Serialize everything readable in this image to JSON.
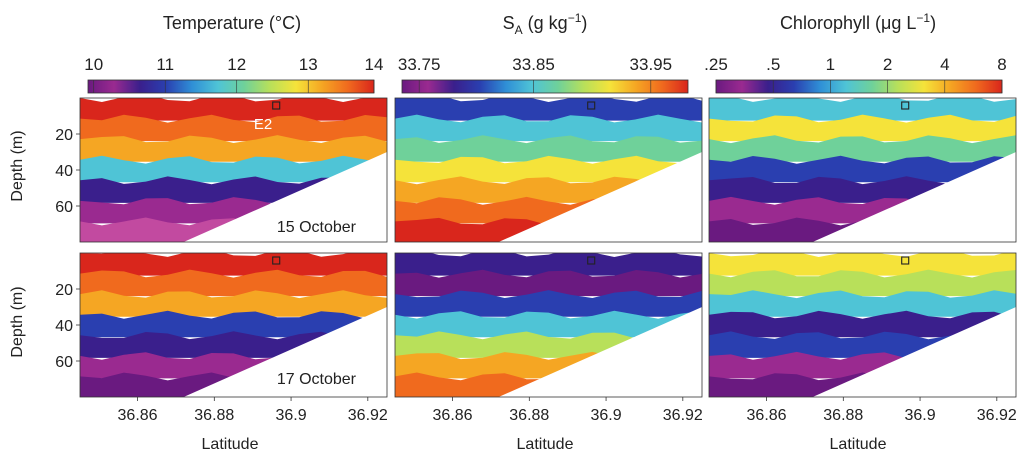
{
  "chart_data": {
    "type": "heatmap",
    "rows": [
      {
        "date_label": "15 October",
        "depth_ticks": [
          20,
          40,
          60
        ]
      },
      {
        "date_label": "17 October",
        "depth_ticks": [
          20,
          40,
          60
        ]
      }
    ],
    "ylabel": "Depth (m)",
    "xlabel": "Latitude",
    "x_ticks": [
      "36.86",
      "36.88",
      "36.9",
      "36.92"
    ],
    "xlim": [
      36.845,
      36.925
    ],
    "ylim": [
      0,
      80
    ],
    "station_label": "E2",
    "station_latitude": 36.896,
    "panels": [
      {
        "variable": "temperature",
        "title": "Temperature (°C)",
        "colorbar_ticks": [
          "10",
          "11",
          "12",
          "13",
          "14"
        ],
        "range": [
          10,
          14
        ]
      },
      {
        "variable": "salinity",
        "title_main": "S",
        "title_sub": "A",
        "title_unit": " (g kg",
        "title_exp": "−1",
        "title_close": ")",
        "colorbar_ticks": [
          "33.75",
          "33.85",
          "33.95"
        ],
        "range": [
          33.72,
          33.97
        ]
      },
      {
        "variable": "chlorophyll",
        "title_main": "Chlorophyll (μg L",
        "title_exp": "−1",
        "title_close": ")",
        "colorbar_ticks": [
          ".25",
          ".5",
          "1",
          "2",
          "4",
          "8"
        ],
        "range": [
          0.25,
          10
        ],
        "log_scale": true
      }
    ],
    "colors": {
      "scale": [
        "#6a1a80",
        "#9a2a90",
        "#3a1f8c",
        "#2a3fb0",
        "#2f8fd6",
        "#4fc4d6",
        "#6fd19a",
        "#b8e05a",
        "#f5e33a",
        "#f5a623",
        "#f06a1e",
        "#d9261c"
      ]
    }
  }
}
